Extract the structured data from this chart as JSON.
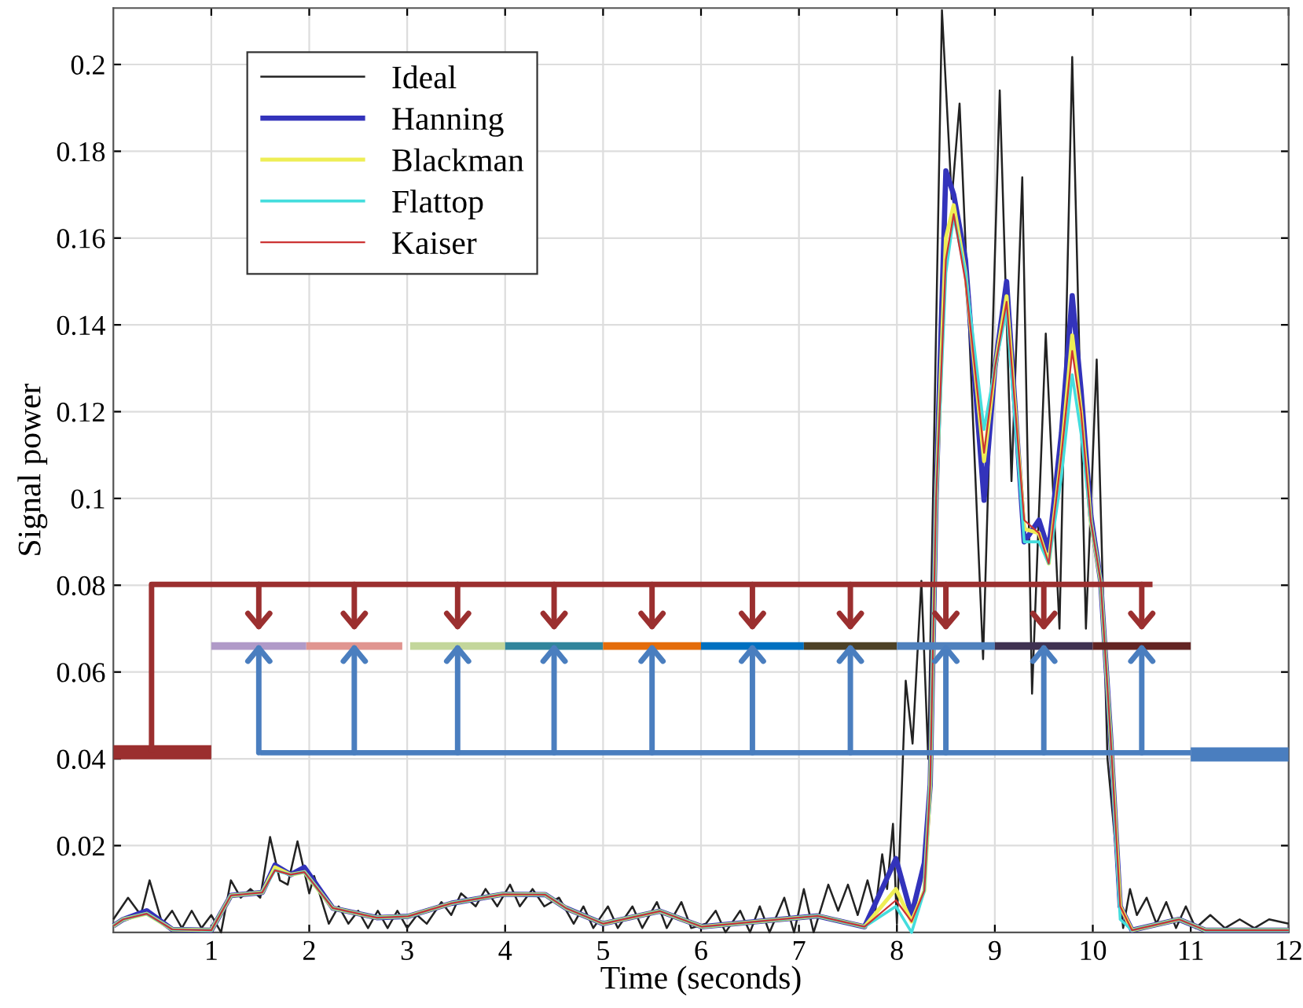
{
  "chart_data": {
    "type": "line",
    "xlabel": "Time (seconds)",
    "ylabel": "Signal power",
    "xlim": [
      0,
      12
    ],
    "xticks": [
      1,
      2,
      3,
      4,
      5,
      6,
      7,
      8,
      9,
      10,
      11,
      12
    ],
    "ylim": [
      0,
      0.213
    ],
    "yticks": [
      0.02,
      0.04,
      0.06,
      0.08,
      0.1,
      0.12,
      0.14,
      0.16,
      0.18,
      0.2
    ],
    "grid": true,
    "legend": "top left",
    "line_style": "solid",
    "series": [
      {
        "name": "Ideal",
        "color": "#222222",
        "x": [
          0,
          0.15,
          0.28,
          0.37,
          0.5,
          0.6,
          0.7,
          0.8,
          0.9,
          1.0,
          1.1,
          1.2,
          1.3,
          1.4,
          1.5,
          1.6,
          1.7,
          1.78,
          1.88,
          2.0,
          2.05,
          2.2,
          2.3,
          2.4,
          2.5,
          2.6,
          2.7,
          2.8,
          2.9,
          3.0,
          3.1,
          3.2,
          3.35,
          3.45,
          3.55,
          3.7,
          3.8,
          3.92,
          4.05,
          4.15,
          4.28,
          4.4,
          4.55,
          4.7,
          4.8,
          4.9,
          5.05,
          5.15,
          5.3,
          5.4,
          5.55,
          5.65,
          5.8,
          5.9,
          6.05,
          6.15,
          6.25,
          6.4,
          6.5,
          6.6,
          6.7,
          6.85,
          6.95,
          7.05,
          7.15,
          7.3,
          7.4,
          7.5,
          7.6,
          7.7,
          7.78,
          7.85,
          7.9,
          7.96,
          8.0,
          8.09,
          8.16,
          8.25,
          8.32,
          8.46,
          8.56,
          8.64,
          8.88,
          9.05,
          9.17,
          9.28,
          9.38,
          9.52,
          9.66,
          9.79,
          9.93,
          10.04,
          10.15,
          10.31,
          10.38,
          10.45,
          10.55,
          10.65,
          10.75,
          10.85,
          10.95,
          11.05,
          11.2,
          11.35,
          11.5,
          11.65,
          11.8,
          12
        ],
        "values": [
          0.003,
          0.008,
          0.004,
          0.012,
          0.002,
          0.005,
          0.001,
          0.005,
          0.001,
          0.004,
          0.0,
          0.012,
          0.008,
          0.01,
          0.008,
          0.022,
          0.012,
          0.011,
          0.021,
          0.009,
          0.013,
          0.002,
          0.006,
          0.002,
          0.005,
          0.001,
          0.005,
          0.001,
          0.005,
          0.001,
          0.004,
          0.002,
          0.007,
          0.004,
          0.009,
          0.006,
          0.01,
          0.006,
          0.011,
          0.006,
          0.01,
          0.006,
          0.008,
          0.002,
          0.006,
          0.001,
          0.006,
          0.001,
          0.006,
          0.001,
          0.007,
          0.001,
          0.007,
          0.001,
          0.002,
          0.005,
          0.0,
          0.005,
          0.0,
          0.006,
          0.0,
          0.008,
          0.0,
          0.01,
          0.0,
          0.011,
          0.005,
          0.011,
          0.004,
          0.012,
          0.005,
          0.018,
          0.01,
          0.025,
          0.002,
          0.058,
          0.0435,
          0.081,
          0.04,
          0.2125,
          0.169,
          0.191,
          0.063,
          0.194,
          0.104,
          0.174,
          0.055,
          0.138,
          0.07,
          0.2017,
          0.07,
          0.132,
          0.04,
          0.001,
          0.01,
          0.004,
          0.008,
          0.002,
          0.007,
          0.001,
          0.006,
          0.001,
          0.004,
          0.001,
          0.003,
          0.001,
          0.003,
          0.002
        ]
      },
      {
        "name": "Hanning",
        "color": "#3333bb",
        "x": [
          0,
          0.1,
          0.34,
          0.6,
          1.0,
          1.2,
          1.52,
          1.65,
          1.81,
          1.95,
          2.24,
          2.69,
          3.01,
          3.45,
          3.98,
          4.41,
          4.62,
          5.0,
          5.58,
          6.01,
          7.19,
          7.67,
          7.99,
          8.15,
          8.28,
          8.34,
          8.4,
          8.5,
          8.58,
          8.7,
          8.89,
          9.0,
          9.12,
          9.3,
          9.45,
          9.55,
          9.68,
          9.79,
          9.88,
          9.98,
          10.08,
          10.18,
          10.28,
          10.4,
          10.88,
          11.15,
          12
        ],
        "values": [
          0.0015,
          0.003,
          0.005,
          0.0007,
          0.0005,
          0.0085,
          0.0092,
          0.0155,
          0.0133,
          0.015,
          0.0056,
          0.0034,
          0.0037,
          0.0067,
          0.0088,
          0.0087,
          0.0056,
          0.002,
          0.0049,
          0.0013,
          0.0038,
          0.0013,
          0.017,
          0.004,
          0.016,
          0.034,
          0.1,
          0.1755,
          0.17,
          0.155,
          0.0996,
          0.13,
          0.15,
          0.09,
          0.095,
          0.088,
          0.115,
          0.1467,
          0.125,
          0.096,
          0.081,
          0.0458,
          0.006,
          0.0005,
          0.003,
          0.0005,
          0.0005
        ]
      },
      {
        "name": "Blackman",
        "color": "#eeee55",
        "x": [
          0,
          0.1,
          0.34,
          0.6,
          1.0,
          1.2,
          1.52,
          1.65,
          1.81,
          1.95,
          2.24,
          2.69,
          3.01,
          3.45,
          3.98,
          4.41,
          4.62,
          5.0,
          5.58,
          6.01,
          7.19,
          7.67,
          7.99,
          8.15,
          8.28,
          8.34,
          8.4,
          8.5,
          8.58,
          8.7,
          8.89,
          9.0,
          9.12,
          9.3,
          9.45,
          9.55,
          9.68,
          9.79,
          9.88,
          9.98,
          10.08,
          10.18,
          10.28,
          10.4,
          10.88,
          11.15,
          12
        ],
        "values": [
          0.0015,
          0.003,
          0.0043,
          0.0007,
          0.0005,
          0.0085,
          0.0092,
          0.015,
          0.0133,
          0.0139,
          0.0056,
          0.0034,
          0.0037,
          0.0067,
          0.0088,
          0.0087,
          0.0056,
          0.002,
          0.0049,
          0.0013,
          0.0038,
          0.0013,
          0.01,
          0.0025,
          0.0096,
          0.034,
          0.1,
          0.16,
          0.1676,
          0.152,
          0.1086,
          0.13,
          0.1466,
          0.093,
          0.092,
          0.085,
          0.11,
          0.1376,
          0.12,
          0.0947,
          0.081,
          0.0458,
          0.006,
          0.0005,
          0.003,
          0.0005,
          0.0005
        ]
      },
      {
        "name": "Flattop",
        "color": "#44dddd",
        "x": [
          0,
          0.1,
          0.34,
          0.6,
          1.0,
          1.2,
          1.52,
          1.65,
          1.81,
          1.95,
          2.24,
          2.69,
          3.01,
          3.45,
          3.98,
          4.41,
          4.62,
          5.0,
          5.58,
          6.01,
          7.19,
          7.67,
          7.99,
          8.15,
          8.28,
          8.34,
          8.4,
          8.5,
          8.58,
          8.7,
          8.89,
          9.0,
          9.12,
          9.3,
          9.45,
          9.55,
          9.68,
          9.79,
          9.88,
          9.98,
          10.08,
          10.18,
          10.28,
          10.4,
          10.88,
          11.15,
          12
        ],
        "values": [
          0.0015,
          0.003,
          0.0043,
          0.0007,
          0.0005,
          0.0085,
          0.0092,
          0.0143,
          0.0133,
          0.0139,
          0.0056,
          0.0034,
          0.0037,
          0.0067,
          0.0088,
          0.0087,
          0.0056,
          0.002,
          0.0049,
          0.0013,
          0.0038,
          0.0013,
          0.006,
          0.0,
          0.0096,
          0.034,
          0.1,
          0.152,
          0.165,
          0.152,
          0.1159,
          0.13,
          0.1435,
          0.09,
          0.09,
          0.085,
          0.105,
          0.1285,
          0.115,
          0.0947,
          0.081,
          0.0458,
          0.003,
          0.0005,
          0.003,
          0.0005,
          0.0005
        ]
      },
      {
        "name": "Kaiser",
        "color": "#cc3333",
        "x": [
          0,
          0.1,
          0.34,
          0.6,
          1.0,
          1.2,
          1.52,
          1.65,
          1.81,
          1.95,
          2.24,
          2.69,
          3.01,
          3.45,
          3.98,
          4.41,
          4.62,
          5.0,
          5.58,
          6.01,
          7.19,
          7.67,
          7.99,
          8.15,
          8.28,
          8.34,
          8.4,
          8.5,
          8.58,
          8.7,
          8.89,
          9.0,
          9.12,
          9.3,
          9.45,
          9.55,
          9.68,
          9.79,
          9.88,
          9.98,
          10.08,
          10.18,
          10.28,
          10.4,
          10.88,
          11.15,
          12
        ],
        "values": [
          0.0015,
          0.003,
          0.0043,
          0.0007,
          0.0005,
          0.0085,
          0.0092,
          0.0143,
          0.0133,
          0.0139,
          0.0056,
          0.0034,
          0.0037,
          0.0067,
          0.0088,
          0.0087,
          0.0056,
          0.002,
          0.0049,
          0.0013,
          0.0038,
          0.0013,
          0.0074,
          0.0025,
          0.0096,
          0.034,
          0.1,
          0.155,
          0.1655,
          0.15,
          0.1105,
          0.13,
          0.1453,
          0.095,
          0.092,
          0.085,
          0.11,
          0.134,
          0.12,
          0.0947,
          0.081,
          0.0458,
          0.006,
          0.0005,
          0.003,
          0.0005,
          0.0005
        ]
      },
      {
        "color": "#b09ac8",
        "x": [
          1.0,
          1.97
        ],
        "values": [
          0.066,
          0.066
        ]
      },
      {
        "color": "#e09590",
        "x": [
          1.97,
          2.95
        ],
        "values": [
          0.066,
          0.066
        ]
      },
      {
        "color": "#c3d69b",
        "x": [
          3.03,
          4.0
        ],
        "values": [
          0.066,
          0.066
        ]
      },
      {
        "color": "#31859c",
        "x": [
          4.0,
          5.0
        ],
        "values": [
          0.066,
          0.066
        ]
      },
      {
        "color": "#e46c0a",
        "x": [
          5.0,
          6.0
        ],
        "values": [
          0.066,
          0.066
        ]
      },
      {
        "color": "#0070c0",
        "x": [
          6.0,
          7.05
        ],
        "values": [
          0.066,
          0.066
        ]
      },
      {
        "color": "#4d4126",
        "x": [
          7.05,
          8.0
        ],
        "values": [
          0.066,
          0.066
        ]
      },
      {
        "color": "#4f81bd",
        "x": [
          8.0,
          9.0
        ],
        "values": [
          0.066,
          0.066
        ]
      },
      {
        "color": "#3f3151",
        "x": [
          9.0,
          10.0
        ],
        "values": [
          0.066,
          0.066
        ]
      },
      {
        "color": "#632423",
        "x": [
          10.0,
          11.0
        ],
        "values": [
          0.066,
          0.066
        ]
      },
      {
        "color": "#9b2f2f",
        "x": [
          0.0,
          1.0
        ],
        "values": [
          0.0415,
          0.0415
        ]
      },
      {
        "color": "#4a7ebf",
        "x": [
          11.0,
          12.0
        ],
        "values": [
          0.041,
          0.041
        ]
      },
      {
        "color": "#9b2f2f",
        "x": [
          0.39,
          0.39,
          10.61
        ],
        "values": [
          0.0415,
          0.0802,
          0.0802
        ]
      },
      {
        "color": "#4a7ebf",
        "x": [
          1.5,
          11.0
        ],
        "values": [
          0.0414,
          0.0414
        ]
      }
    ]
  }
}
